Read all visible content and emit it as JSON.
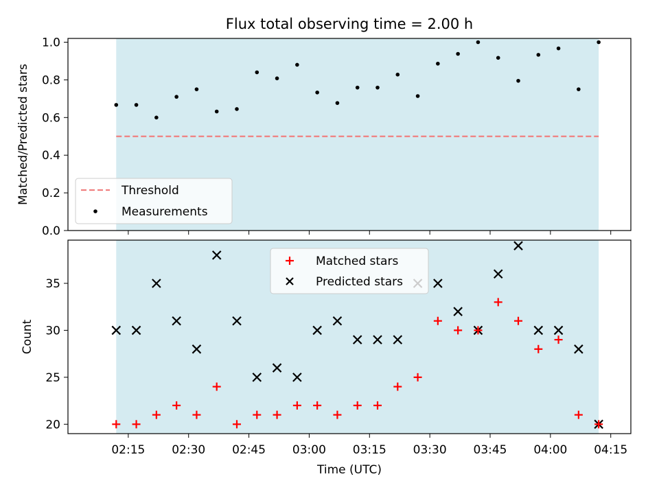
{
  "chart_data": [
    {
      "type": "scatter",
      "title": "Flux total observing time = 2.00 h",
      "ylabel": "Matched/Predicted stars",
      "ylim": [
        0,
        1.02
      ],
      "yticks": [
        "0.0",
        "0.2",
        "0.4",
        "0.6",
        "0.8",
        "1.0"
      ],
      "x_minutes": [
        132,
        137,
        142,
        147,
        152,
        157,
        162,
        167,
        172,
        177,
        182,
        187,
        192,
        197,
        202,
        207,
        212,
        217,
        222,
        227,
        232,
        237,
        242,
        247,
        252
      ],
      "observing_window": [
        132,
        252
      ],
      "threshold": 0.5,
      "series": [
        {
          "name": "Measurements",
          "values": [
            0.667,
            0.667,
            0.6,
            0.71,
            0.75,
            0.632,
            0.645,
            0.84,
            0.808,
            0.88,
            0.733,
            0.677,
            0.759,
            0.759,
            0.828,
            0.714,
            0.886,
            0.938,
            1.0,
            0.917,
            0.795,
            0.933,
            0.967,
            0.75,
            1.0
          ]
        }
      ],
      "legend": [
        "Threshold",
        "Measurements"
      ],
      "legend_position": "lower-left"
    },
    {
      "type": "scatter",
      "xlabel": "Time (UTC)",
      "ylabel": "Count",
      "ylim": [
        19,
        39.6
      ],
      "yticks": [
        "20",
        "25",
        "30",
        "35"
      ],
      "xticks": [
        "02:15",
        "02:30",
        "02:45",
        "03:00",
        "03:15",
        "03:30",
        "03:45",
        "04:00",
        "04:15"
      ],
      "x_minutes": [
        132,
        137,
        142,
        147,
        152,
        157,
        162,
        167,
        172,
        177,
        182,
        187,
        192,
        197,
        202,
        207,
        212,
        217,
        222,
        227,
        232,
        237,
        242,
        247,
        252
      ],
      "observing_window": [
        132,
        252
      ],
      "series": [
        {
          "name": "Matched stars",
          "values": [
            20,
            20,
            21,
            22,
            21,
            24,
            20,
            21,
            21,
            22,
            22,
            21,
            22,
            22,
            24,
            25,
            31,
            30,
            30,
            33,
            31,
            28,
            29,
            21,
            20
          ]
        },
        {
          "name": "Predicted stars",
          "values": [
            30,
            30,
            35,
            31,
            28,
            38,
            31,
            25,
            26,
            25,
            30,
            31,
            29,
            29,
            29,
            35,
            35,
            32,
            30,
            36,
            39,
            30,
            30,
            28,
            20
          ]
        }
      ],
      "legend": [
        "Matched stars",
        "Predicted stars"
      ],
      "legend_position": "upper-center"
    }
  ],
  "colors": {
    "window_fill": "#d5ebf1",
    "threshold": "#f08080",
    "measurement": "#000000",
    "matched": "#ff0000",
    "predicted": "#000000"
  }
}
